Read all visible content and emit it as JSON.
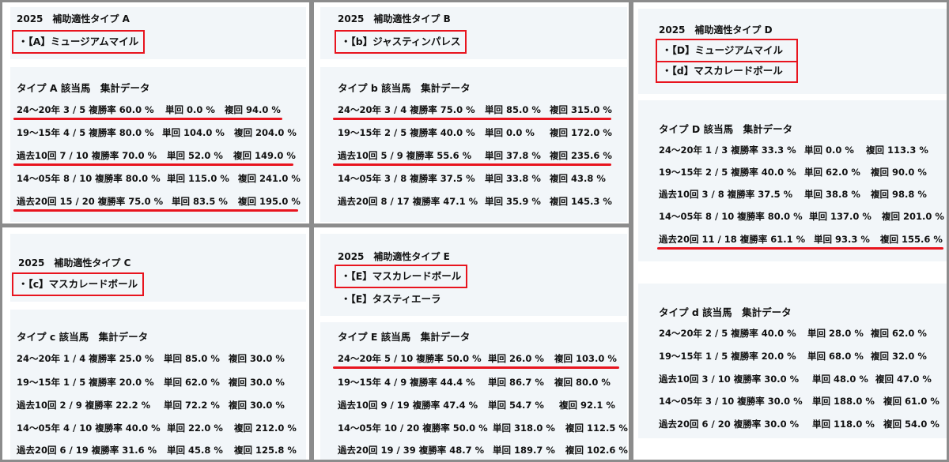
{
  "accent_color": "#e8141e",
  "panels": {
    "A": {
      "title": "2025　補助適性タイプ A",
      "horses": [
        "・【A】ミュージアムマイル"
      ],
      "section": "タイプ A 該当馬　集計データ",
      "rows": [
        {
          "period": "24～20年 3 / 5 複勝率 60.0 %",
          "tan": "単回 0.0 %",
          "fuku": "複回 94.0 %"
        },
        {
          "period": "19～15年 4 / 5 複勝率 80.0 %",
          "tan": "単回 104.0 %",
          "fuku": "複回 204.0 %"
        },
        {
          "period": "過去10回 7 / 10 複勝率 70.0 %",
          "tan": "単回 52.0 %",
          "fuku": "複回 149.0 %"
        },
        {
          "period": "14～05年 8 / 10 複勝率 80.0 %",
          "tan": "単回 115.0 %",
          "fuku": "複回 241.0 %"
        },
        {
          "period": "過去20回 15 / 20 複勝率 75.0 %",
          "tan": "単回 83.5 %",
          "fuku": "複回 195.0 %"
        }
      ]
    },
    "b": {
      "title": "2025　補助適性タイプ B",
      "horses": [
        "・【b】ジャスティンパレス"
      ],
      "section": "タイプ b 該当馬　集計データ",
      "rows": [
        {
          "period": "24～20年 3 / 4 複勝率 75.0 %",
          "tan": "単回 85.0 %",
          "fuku": "複回 315.0 %"
        },
        {
          "period": "19～15年 2 / 5 複勝率 40.0 %",
          "tan": "単回 0.0 %",
          "fuku": "複回 172.0 %"
        },
        {
          "period": "過去10回 5 / 9 複勝率 55.6 %",
          "tan": "単回 37.8 %",
          "fuku": "複回 235.6 %"
        },
        {
          "period": "14～05年 3 / 8 複勝率 37.5 %",
          "tan": "単回 33.8 %",
          "fuku": "複回 43.8 %"
        },
        {
          "period": "過去20回 8 / 17 複勝率 47.1 %",
          "tan": "単回 35.9 %",
          "fuku": "複回 145.3 %"
        }
      ]
    },
    "c": {
      "title": "2025　補助適性タイプ C",
      "horses": [
        "・【c】マスカレードボール"
      ],
      "section": "タイプ c 該当馬　集計データ",
      "rows": [
        {
          "period": "24～20年 1 / 4 複勝率 25.0 %",
          "tan": "単回 85.0 %",
          "fuku": "複回 30.0 %"
        },
        {
          "period": "19～15年 1 / 5 複勝率 20.0 %",
          "tan": "単回 62.0 %",
          "fuku": "複回 30.0 %"
        },
        {
          "period": "過去10回 2 / 9 複勝率 22.2 %",
          "tan": "単回 72.2 %",
          "fuku": "複回 30.0 %"
        },
        {
          "period": "14～05年 4 / 10 複勝率 40.0 %",
          "tan": "単回 22.0 %",
          "fuku": "複回 212.0 %"
        },
        {
          "period": "過去20回 6 / 19 複勝率 31.6 %",
          "tan": "単回 45.8 %",
          "fuku": "複回 125.8 %"
        }
      ]
    },
    "E": {
      "title": "2025　補助適性タイプ E",
      "horses": [
        "・【E】マスカレードボール",
        "・【E】タスティエーラ"
      ],
      "section": "タイプ E 該当馬　集計データ",
      "rows": [
        {
          "period": "24～20年 5 / 10 複勝率 50.0 %",
          "tan": "単回 26.0 %",
          "fuku": "複回 103.0 %"
        },
        {
          "period": "19～15年 4 / 9 複勝率 44.4 %",
          "tan": "単回 86.7 %",
          "fuku": "複回 80.0 %"
        },
        {
          "period": "過去10回 9 / 19 複勝率 47.4 %",
          "tan": "単回 54.7 %",
          "fuku": "複回 92.1 %"
        },
        {
          "period": "14～05年 10 / 20 複勝率 50.0 %",
          "tan": "単回 318.0 %",
          "fuku": "複回 112.5 %"
        },
        {
          "period": "過去20回 19 / 39 複勝率 48.7 %",
          "tan": "単回 189.7 %",
          "fuku": "複回 102.6 %"
        }
      ]
    },
    "D": {
      "title": "2025　補助適性タイプ D",
      "horses": [
        "・【D】ミュージアムマイル",
        "・【d】マスカレードボール"
      ],
      "section": "タイプ D 該当馬　集計データ",
      "rows": [
        {
          "period": "24～20年 1 / 3 複勝率 33.3 %",
          "tan": "単回 0.0 %",
          "fuku": "複回 113.3 %"
        },
        {
          "period": "19～15年 2 / 5 複勝率 40.0 %",
          "tan": "単回 62.0 %",
          "fuku": "複回 90.0 %"
        },
        {
          "period": "過去10回 3 / 8 複勝率 37.5 %",
          "tan": "単回 38.8 %",
          "fuku": "複回 98.8 %"
        },
        {
          "period": "14～05年 8 / 10 複勝率 80.0 %",
          "tan": "単回 137.0 %",
          "fuku": "複回 201.0 %"
        },
        {
          "period": "過去20回 11 / 18 複勝率 61.1 %",
          "tan": "単回 93.3 %",
          "fuku": "複回 155.6 %"
        }
      ],
      "section2": "タイプ d 該当馬　集計データ",
      "rows2": [
        {
          "period": "24～20年 2 / 5 複勝率 40.0 %",
          "tan": "単回 28.0 %",
          "fuku": "複回 62.0 %"
        },
        {
          "period": "19～15年 1 / 5 複勝率 20.0 %",
          "tan": "単回 68.0 %",
          "fuku": "複回 32.0 %"
        },
        {
          "period": "過去10回 3 / 10 複勝率 30.0 %",
          "tan": "単回 48.0 %",
          "fuku": "複回 47.0 %"
        },
        {
          "period": "14～05年 3 / 10 複勝率 30.0 %",
          "tan": "単回 188.0 %",
          "fuku": "複回 61.0 %"
        },
        {
          "period": "過去20回 6 / 20 複勝率 30.0 %",
          "tan": "単回 118.0 %",
          "fuku": "複回 54.0 %"
        }
      ]
    }
  }
}
